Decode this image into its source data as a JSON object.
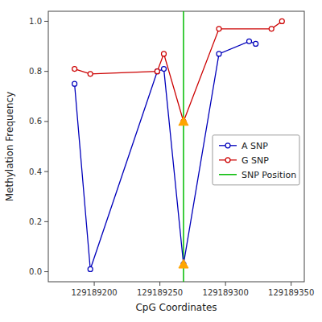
{
  "chart_data": {
    "type": "line",
    "xlabel": "CpG Coordinates",
    "ylabel": "Methylation Frequency",
    "series": [
      {
        "name": "A SNP",
        "color": "#0000bb",
        "marker": "circle",
        "line_style": "solid",
        "x": [
          129189185,
          129189197,
          129189248,
          129189253,
          129189268,
          129189295,
          129189318,
          129189323
        ],
        "values": [
          0.75,
          0.01,
          0.8,
          0.81,
          0.03,
          0.87,
          0.92,
          0.91
        ]
      },
      {
        "name": "G SNP",
        "color": "#cc0000",
        "marker": "circle",
        "line_style": "solid",
        "x": [
          129189185,
          129189197,
          129189248,
          129189253,
          129189268,
          129189295,
          129189335,
          129189343
        ],
        "values": [
          0.81,
          0.79,
          0.8,
          0.87,
          0.6,
          0.97,
          0.97,
          1.0
        ]
      }
    ],
    "vlines": [
      {
        "name": "SNP Position",
        "x": 129189268,
        "color": "#00bb00"
      }
    ],
    "markers": {
      "x": 129189268,
      "values": [
        0.6,
        0.03
      ],
      "color": "#FFA500",
      "marker": "triangle"
    },
    "xlim": [
      129189165,
      129189360
    ],
    "ylim": [
      -0.04,
      1.04
    ],
    "xticks": [
      129189200,
      129189250,
      129189300,
      129189350
    ],
    "yticks": [
      {
        "value": 0.0,
        "label": "0.0"
      },
      0.2,
      0.4,
      0.6,
      0.8,
      {
        "value": 1.0,
        "label": "1.0"
      }
    ],
    "grid": false,
    "legend": "right"
  }
}
